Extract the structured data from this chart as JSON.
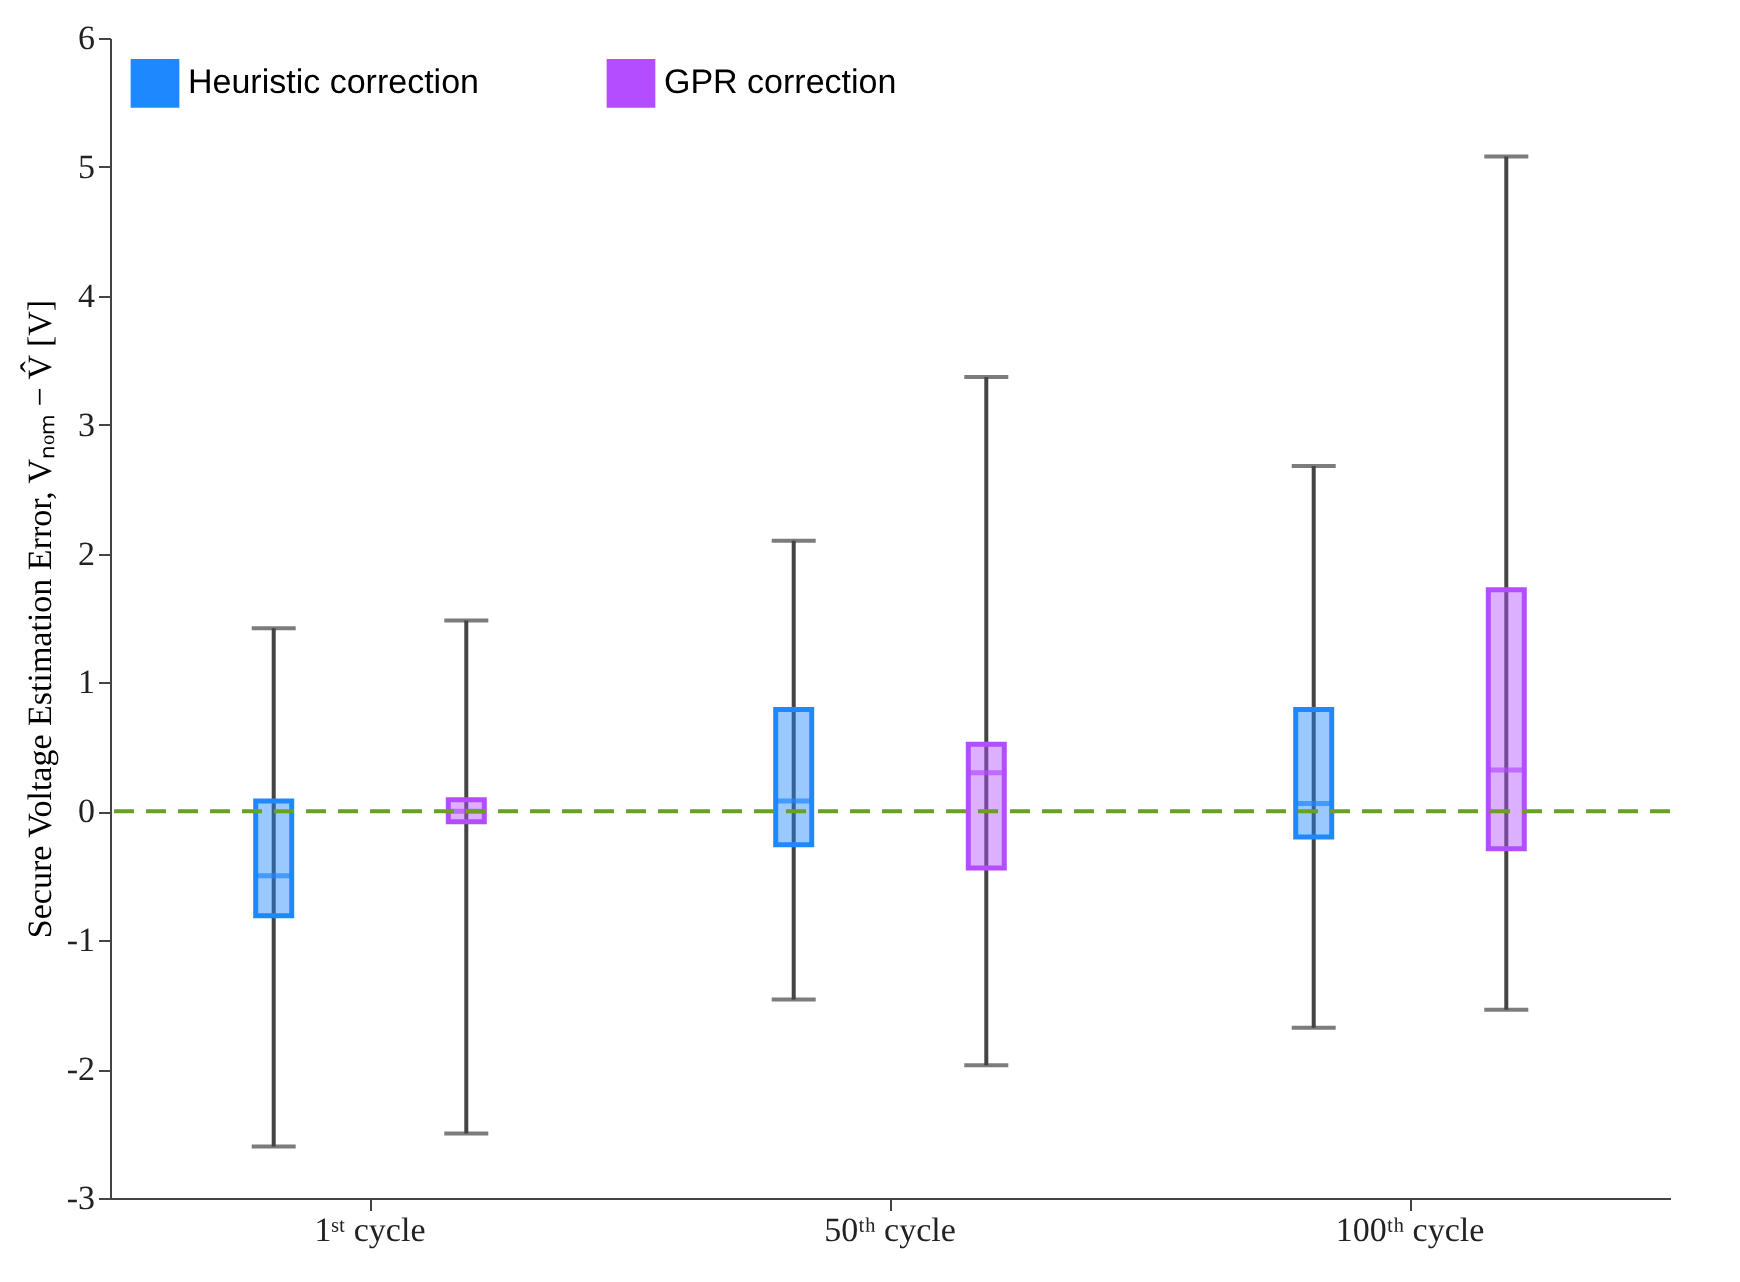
{
  "chart_data": {
    "type": "box",
    "ylabel": "Secure Voltage Estimation Error,  Vₙₒₘ − V̂  [V]",
    "categories": [
      "1ˢᵗ cycle",
      "50ᵗʰ cycle",
      "100ᵗʰ cycle"
    ],
    "series": [
      {
        "name": "Heuristic correction",
        "color": "#1e88ff",
        "boxes": [
          {
            "low": -2.6,
            "q1": -0.81,
            "median": -0.5,
            "q3": 0.08,
            "high": 1.42
          },
          {
            "low": -1.46,
            "q1": -0.26,
            "median": 0.08,
            "q3": 0.79,
            "high": 2.1
          },
          {
            "low": -1.68,
            "q1": -0.2,
            "median": 0.06,
            "q3": 0.79,
            "high": 2.68
          }
        ]
      },
      {
        "name": "GPR correction",
        "color": "#b44dff",
        "boxes": [
          {
            "low": -2.5,
            "q1": -0.08,
            "median": 0.0,
            "q3": 0.09,
            "high": 1.48
          },
          {
            "low": -1.97,
            "q1": -0.44,
            "median": 0.3,
            "q3": 0.52,
            "high": 3.37
          },
          {
            "low": -1.54,
            "q1": -0.29,
            "median": 0.32,
            "q3": 1.72,
            "high": 5.08
          }
        ]
      }
    ],
    "ylim": [
      -3,
      6
    ],
    "yticks": [
      -3,
      -2,
      -1,
      0,
      1,
      2,
      3,
      4,
      5,
      6
    ],
    "ref_lines": [
      {
        "axis": "y",
        "value": 0,
        "color": "#6aa121",
        "line_style": "dashed"
      }
    ],
    "legend": "top left",
    "grid": false
  }
}
